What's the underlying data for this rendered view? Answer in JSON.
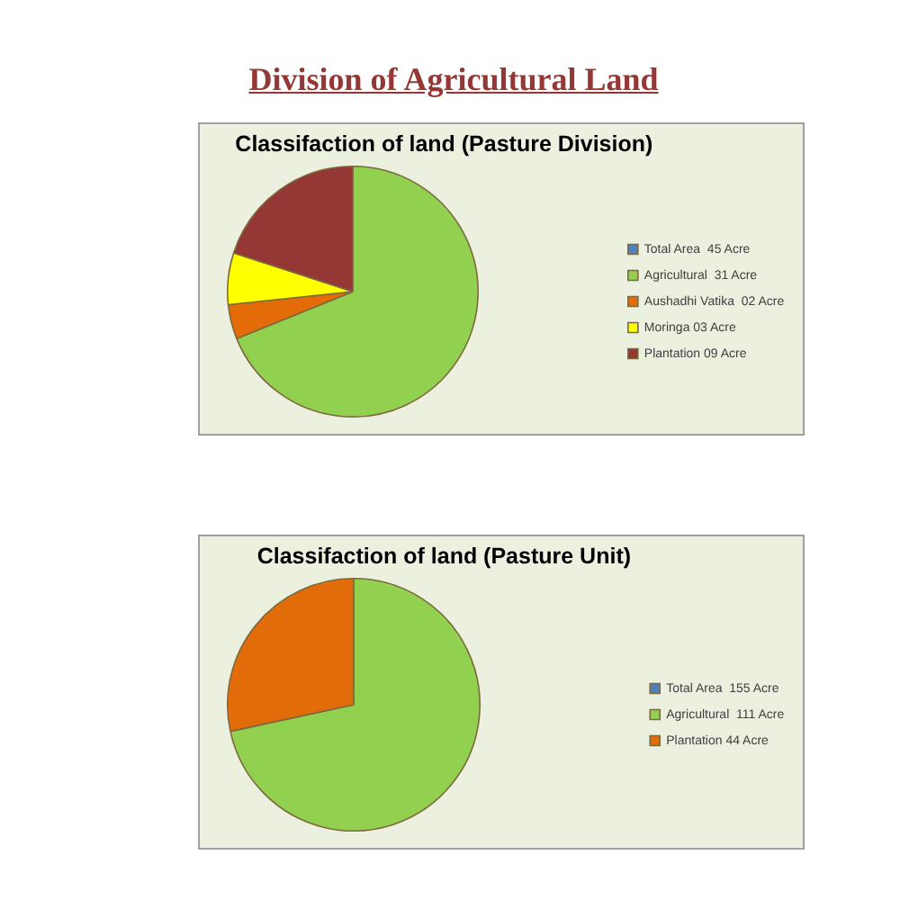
{
  "chart_data": [
    {
      "type": "other",
      "title": "Division of Agricultural Land"
    },
    {
      "type": "pie",
      "title": "Classifaction of land (Pasture Division)",
      "categories": [
        "Total Area  45 Acre",
        "Agricultural  31 Acre",
        "Aushadhi Vatika  02 Acre",
        "Moringa 03 Acre",
        "Plantation 09 Acre"
      ],
      "values": [
        0,
        31,
        2,
        3,
        9
      ],
      "colors": [
        "#4f81bd",
        "#92d050",
        "#e36c09",
        "#ffff00",
        "#953735"
      ],
      "legend": "right"
    },
    {
      "type": "pie",
      "title": "Classifaction of land (Pasture Unit)",
      "categories": [
        "Total Area  155 Acre",
        "Agricultural  111 Acre",
        "Plantation 44 Acre"
      ],
      "values": [
        0,
        111,
        44
      ],
      "colors": [
        "#4f81bd",
        "#92d050",
        "#e36c0a"
      ],
      "legend": "right"
    }
  ]
}
